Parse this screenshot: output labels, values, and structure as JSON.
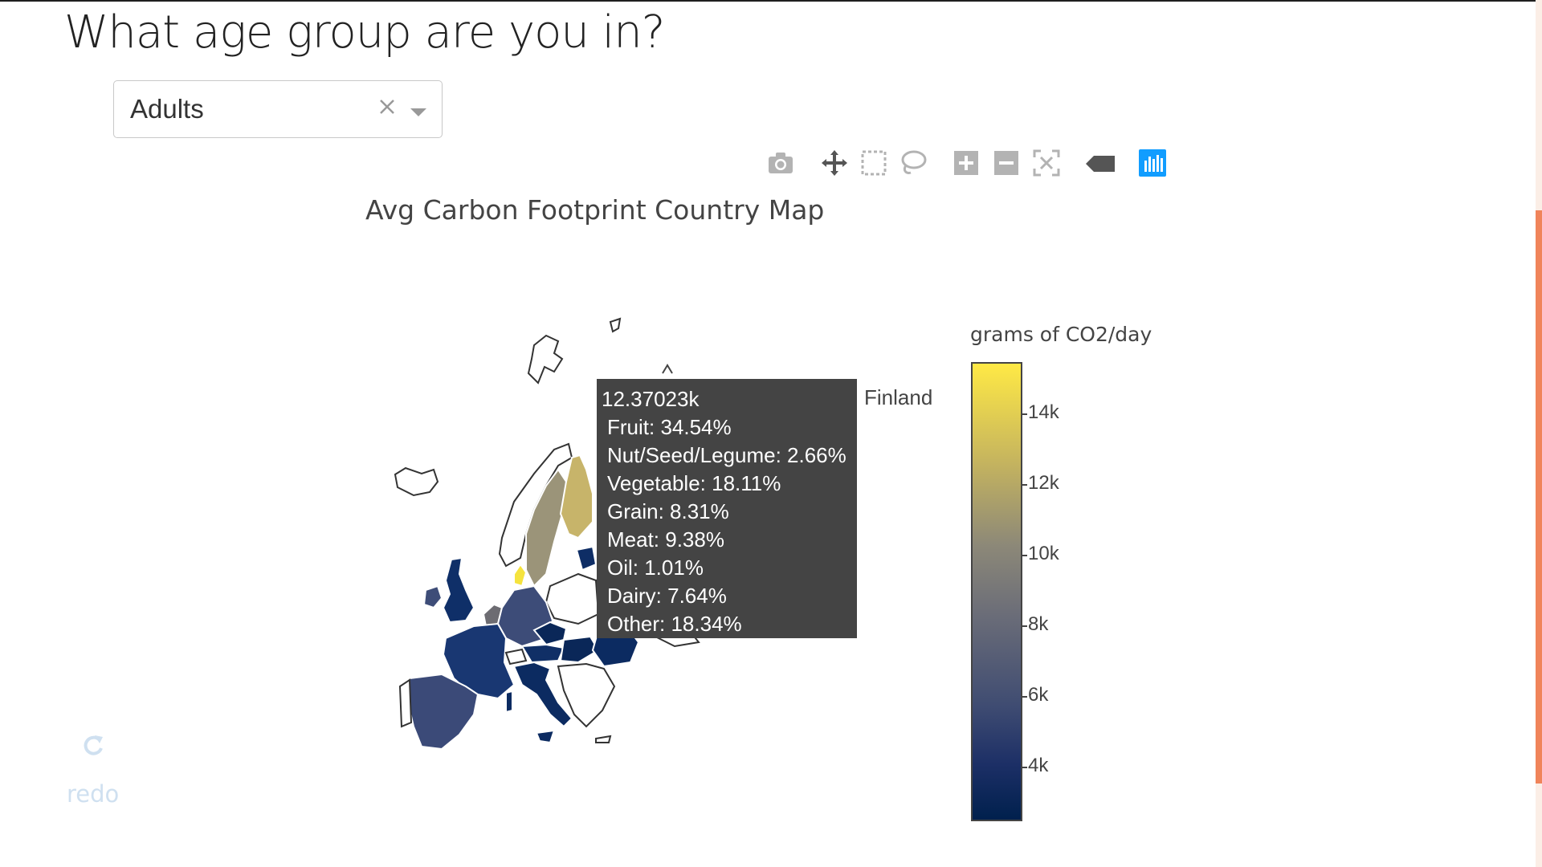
{
  "question": "What age group are you in?",
  "age_select": {
    "value": "Adults"
  },
  "modebar": {
    "icons": [
      "camera-icon",
      "pan-icon",
      "box-select-icon",
      "lasso-icon",
      "zoom-in-icon",
      "zoom-out-icon",
      "reset-icon",
      "hover-closest-icon",
      "plotly-logo-icon"
    ]
  },
  "map": {
    "title": "Avg Carbon Footprint Country Map",
    "hover": {
      "value": "12.37023k",
      "lines": [
        "Fruit: 34.54%",
        "Nut/Seed/Legume: 2.66%",
        "Vegetable: 18.11%",
        "Grain: 8.31%",
        "Meat: 9.38%",
        "Oil: 1.01%",
        "Dairy: 7.64%",
        "Other: 18.34%"
      ],
      "country": "Finland"
    },
    "colorbar": {
      "title": "grams of CO2/day",
      "ticks": [
        "14k",
        "12k",
        "10k",
        "8k",
        "6k",
        "4k"
      ]
    }
  },
  "redo": {
    "label": "redo"
  }
}
